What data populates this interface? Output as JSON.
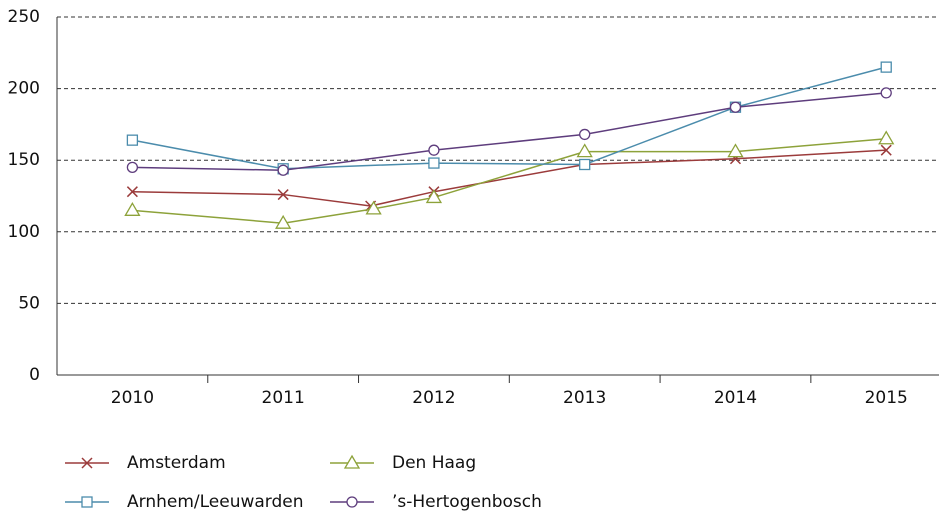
{
  "chart_data": {
    "type": "line",
    "xticks": [
      {
        "value": 2010,
        "label": "2010"
      },
      {
        "value": 2011,
        "label": "2011"
      },
      {
        "value": 2012,
        "label": "2012"
      },
      {
        "value": 2013,
        "label": "2013"
      },
      {
        "value": 2014,
        "label": "2014"
      },
      {
        "value": 2015,
        "label": "2015"
      }
    ],
    "xlim": [
      2009.5,
      2015.35
    ],
    "ylim": [
      0,
      250
    ],
    "yticks": [
      0,
      50,
      100,
      150,
      200,
      250
    ],
    "grid": true,
    "series": [
      {
        "name": "Amsterdam",
        "color": "#9b3b3b",
        "marker": "x",
        "x": [
          2010,
          2011,
          2011.58,
          2012,
          2013,
          2014,
          2015
        ],
        "values": [
          128,
          126,
          118,
          128,
          147,
          151,
          157
        ]
      },
      {
        "name": "Den Haag",
        "color": "#8da23a",
        "marker": "triangle",
        "x": [
          2010,
          2011,
          2011.6,
          2012,
          2013,
          2014,
          2015
        ],
        "values": [
          115,
          106,
          116,
          124,
          156,
          156,
          165
        ]
      },
      {
        "name": "Arnhem/Leeuwarden",
        "color": "#4b8cac",
        "marker": "square",
        "x": [
          2010,
          2011,
          2012,
          2013,
          2014,
          2015
        ],
        "values": [
          164,
          144,
          148,
          147,
          187,
          215
        ]
      },
      {
        "name": "’s-Hertogenbosch",
        "color": "#5e3d7d",
        "marker": "circle",
        "x": [
          2010,
          2011,
          2012,
          2013,
          2014,
          2015
        ],
        "values": [
          145,
          143,
          157,
          168,
          187,
          197
        ]
      }
    ]
  }
}
